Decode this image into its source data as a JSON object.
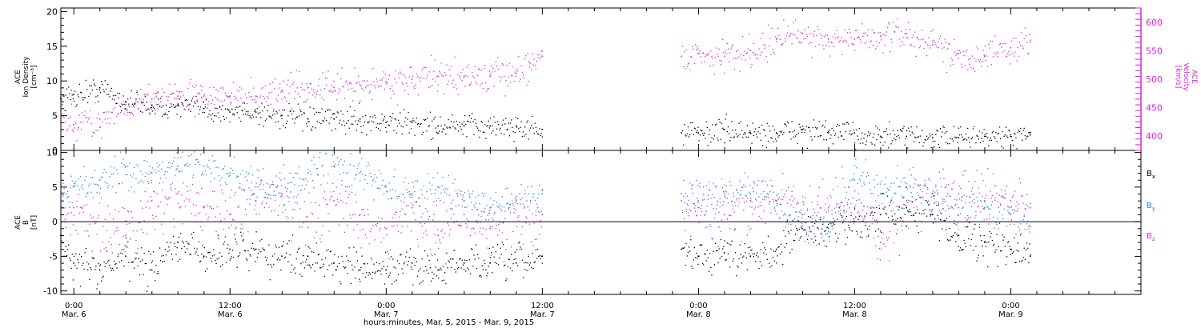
{
  "colors": {
    "density": "#000000",
    "velocity": "#e020e0",
    "bx": "#000000",
    "by": "#1e8ce6",
    "bz": "#e020e0",
    "axis": "#000000"
  },
  "x_axis": {
    "title": "hours:minutes, Mar. 5, 2015 - Mar. 9, 2015",
    "range_hours": [
      -1,
      82
    ],
    "ticks": [
      {
        "hour": 0,
        "time": "0:00",
        "date": "Mar. 6"
      },
      {
        "hour": 12,
        "time": "12:00",
        "date": "Mar. 6"
      },
      {
        "hour": 24,
        "time": "0:00",
        "date": "Mar. 7"
      },
      {
        "hour": 36,
        "time": "12:00",
        "date": "Mar. 7"
      },
      {
        "hour": 48,
        "time": "0:00",
        "date": "Mar. 8"
      },
      {
        "hour": 60,
        "time": "12:00",
        "date": "Mar. 8"
      },
      {
        "hour": 72,
        "time": "0:00",
        "date": "Mar. 9"
      }
    ]
  },
  "top_panel": {
    "left_label": [
      "ACE",
      "Ion Density",
      "[cm⁻³]"
    ],
    "right_label": [
      "ACE",
      "Velocity",
      "[km/s]"
    ],
    "left_ticks": [
      "0",
      "5",
      "10",
      "15",
      "20"
    ],
    "right_ticks": [
      "400",
      "450",
      "500",
      "550",
      "600"
    ]
  },
  "bottom_panel": {
    "left_label": [
      "ACE",
      "B",
      "[nT]"
    ],
    "left_ticks": [
      "-10",
      "-5",
      "0",
      "5",
      "10"
    ],
    "legend": [
      {
        "main": "B",
        "sub": "x"
      },
      {
        "main": "B",
        "sub": "y"
      },
      {
        "main": "B",
        "sub": "z"
      }
    ]
  },
  "chart_data": [
    {
      "type": "scatter",
      "panel": "top",
      "xlabel": "hours:minutes, Mar. 5, 2015 - Mar. 9, 2015",
      "ylabel_left": "ACE Ion Density [cm⁻³]",
      "ylabel_right": "ACE Velocity [km/s]",
      "ylim_left": [
        0,
        20.5
      ],
      "ylim_right": [
        375,
        625
      ],
      "data_gap_hours": [
        36,
        46.7
      ],
      "series": [
        {
          "name": "Ion Density",
          "axis": "left",
          "x": [
            -1,
            0,
            2,
            4,
            6,
            8,
            10,
            12,
            14,
            16,
            18,
            20,
            22,
            24,
            26,
            28,
            30,
            32,
            34,
            36,
            46.7,
            48,
            50,
            52,
            54,
            56,
            58,
            60,
            62,
            64,
            66,
            68,
            70,
            72,
            73.5
          ],
          "y": [
            7.5,
            8,
            9,
            7,
            6.5,
            6.5,
            6,
            5.5,
            5.5,
            5,
            4.5,
            4.5,
            4.5,
            4,
            4,
            3.5,
            3.5,
            3.5,
            3.5,
            3,
            2.5,
            2.5,
            3,
            2.5,
            2.5,
            3,
            2.5,
            2.5,
            2,
            2,
            1.8,
            1.8,
            2,
            2,
            2.2
          ]
        },
        {
          "name": "Velocity",
          "axis": "right",
          "x": [
            -1,
            0,
            2,
            4,
            6,
            8,
            10,
            12,
            14,
            16,
            18,
            20,
            22,
            24,
            26,
            28,
            30,
            32,
            34,
            35,
            36,
            46.7,
            48,
            50,
            52,
            54,
            56,
            58,
            60,
            62,
            64,
            66,
            68,
            70,
            72,
            73.5
          ],
          "y": [
            425,
            420,
            430,
            455,
            465,
            470,
            470,
            470,
            470,
            480,
            485,
            485,
            490,
            495,
            500,
            505,
            505,
            505,
            510,
            530,
            540,
            540,
            545,
            540,
            550,
            570,
            580,
            570,
            570,
            575,
            580,
            560,
            545,
            540,
            555,
            565
          ]
        }
      ]
    },
    {
      "type": "scatter",
      "panel": "bottom",
      "ylabel": "ACE B [nT]",
      "ylim": [
        -10.5,
        10.3
      ],
      "reference_line_y": 0,
      "data_gap_hours": [
        36,
        46.7
      ],
      "series": [
        {
          "name": "Bx",
          "x": [
            -1,
            0,
            2,
            4,
            6,
            8,
            10,
            12,
            14,
            16,
            18,
            20,
            22,
            24,
            26,
            28,
            30,
            32,
            34,
            36,
            46.7,
            48,
            50,
            52,
            54,
            56,
            58,
            60,
            62,
            64,
            66,
            68,
            70,
            72,
            73.5
          ],
          "y": [
            -2,
            -6,
            -7,
            -5,
            -7,
            -3,
            -5,
            -4,
            -4,
            -5,
            -5,
            -6,
            -7,
            -7,
            -6,
            -7,
            -6,
            -6,
            -6,
            -5,
            -4,
            -5,
            -4.5,
            -5,
            -4,
            -1,
            -1,
            0,
            1,
            2,
            1,
            -2,
            -3,
            -4,
            -5
          ]
        },
        {
          "name": "By",
          "x": [
            -1,
            0,
            2,
            4,
            6,
            8,
            10,
            12,
            14,
            16,
            18,
            20,
            22,
            24,
            26,
            28,
            30,
            32,
            34,
            36,
            46.7,
            48,
            50,
            52,
            54,
            56,
            58,
            60,
            62,
            64,
            66,
            68,
            70,
            72,
            73.5
          ],
          "y": [
            4,
            5,
            6,
            8,
            7,
            8,
            8,
            7,
            5,
            4,
            7,
            8,
            7,
            5,
            4,
            5,
            3,
            2,
            3,
            4,
            4,
            3,
            4,
            4,
            3,
            0,
            -1,
            6,
            4,
            5,
            4,
            2,
            2,
            1,
            0
          ]
        },
        {
          "name": "Bz",
          "x": [
            -1,
            0,
            2,
            4,
            6,
            8,
            10,
            12,
            14,
            16,
            18,
            20,
            22,
            24,
            26,
            28,
            30,
            32,
            34,
            36,
            46.7,
            48,
            50,
            52,
            54,
            56,
            58,
            60,
            62,
            64,
            66,
            68,
            70,
            72,
            73.5
          ],
          "y": [
            1,
            2,
            0,
            -2,
            3,
            4,
            2,
            1,
            3,
            4,
            0,
            3,
            1,
            -1,
            2,
            -2,
            1,
            -1,
            0,
            1,
            3,
            2,
            1,
            3,
            3,
            1,
            2,
            2,
            -3,
            3,
            4,
            4,
            3,
            3,
            2
          ]
        }
      ]
    }
  ]
}
